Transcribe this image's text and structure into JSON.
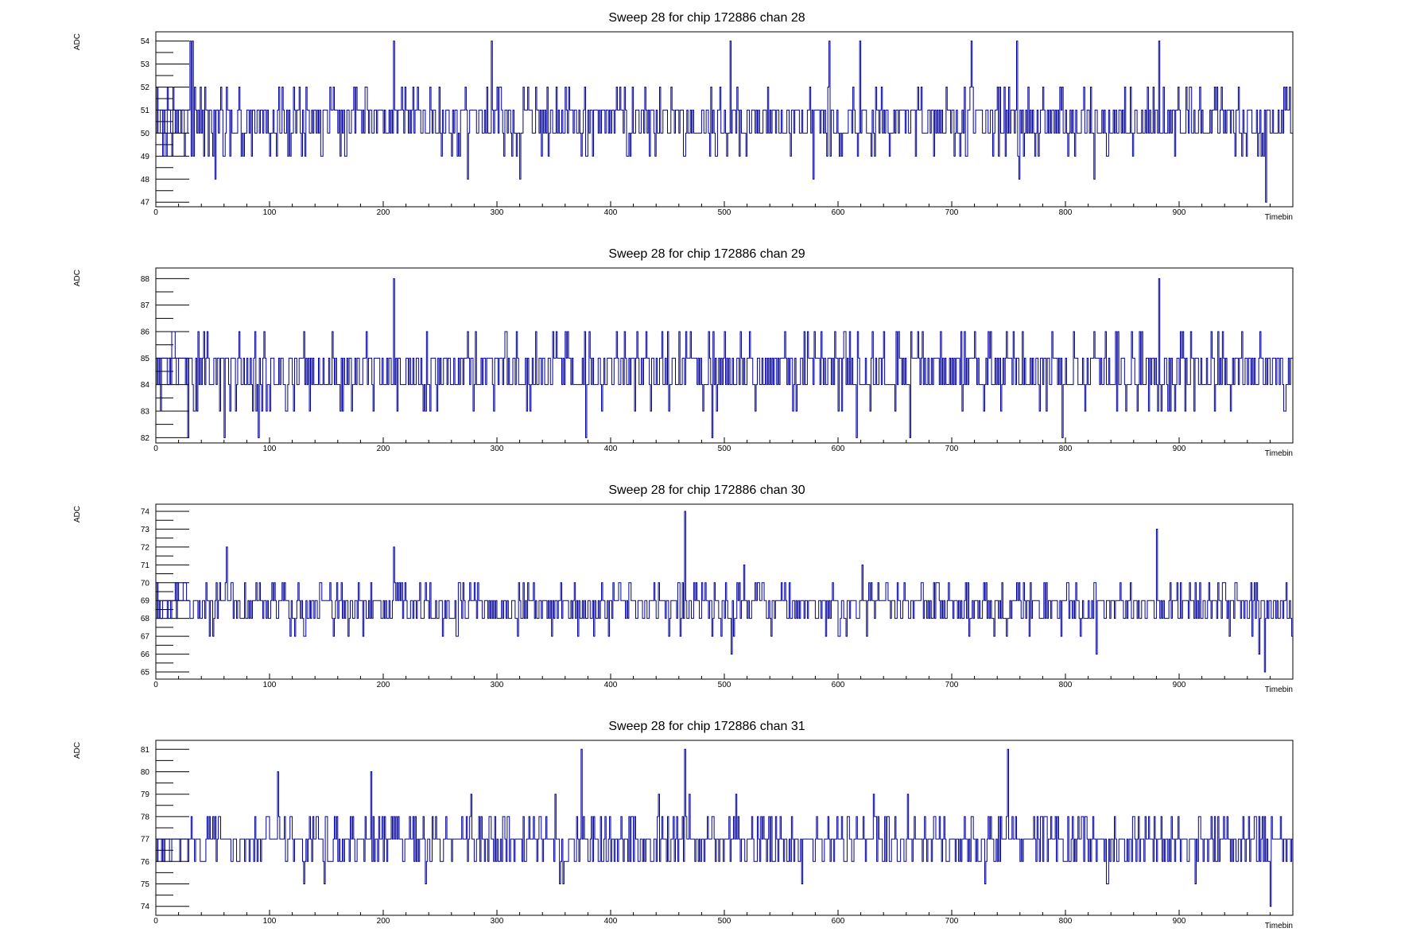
{
  "colors": {
    "series": "#000099",
    "frame": "#000000",
    "background": "#ffffff"
  },
  "chart_data": [
    {
      "type": "line",
      "title": "Sweep 28 for chip 172886 chan 28",
      "xlabel": "Timebin",
      "ylabel": "ADC",
      "xlim": [
        0,
        1000
      ],
      "ylim": [
        46.8,
        54.4
      ],
      "xticks": [
        0,
        100,
        200,
        300,
        400,
        500,
        600,
        700,
        800,
        900
      ],
      "yticks": [
        47,
        48,
        49,
        50,
        51,
        52,
        53,
        54
      ],
      "series": [
        {
          "baseline": 50.5,
          "spread": 1.1,
          "vmin": 47,
          "vmax": 54,
          "x": [
            0,
            30,
            32,
            52,
            209,
            274,
            295,
            320,
            505,
            578,
            592,
            619,
            717,
            757,
            759,
            825,
            882,
            976,
            1000
          ],
          "values": [
            50,
            54,
            54,
            48,
            54,
            48,
            54,
            48,
            54,
            48,
            54,
            54,
            54,
            54,
            48,
            48,
            54,
            47,
            50
          ]
        }
      ],
      "grid": false,
      "legend": "none"
    },
    {
      "type": "line",
      "title": "Sweep 28 for chip 172886 chan 29",
      "xlabel": "Timebin",
      "ylabel": "ADC",
      "xlim": [
        0,
        1000
      ],
      "ylim": [
        81.8,
        88.4
      ],
      "xticks": [
        0,
        100,
        200,
        300,
        400,
        500,
        600,
        700,
        800,
        900
      ],
      "yticks": [
        82,
        83,
        84,
        85,
        86,
        87,
        88
      ],
      "series": [
        {
          "baseline": 84.5,
          "spread": 1.0,
          "vmin": 82,
          "vmax": 88,
          "x": [
            0,
            28,
            60,
            90,
            209,
            378,
            489,
            616,
            663,
            797,
            882,
            1000
          ],
          "values": [
            84,
            82,
            82,
            82,
            88,
            82,
            82,
            82,
            82,
            82,
            88,
            83
          ]
        }
      ],
      "grid": false,
      "legend": "none"
    },
    {
      "type": "line",
      "title": "Sweep 28 for chip 172886 chan 30",
      "xlabel": "Timebin",
      "ylabel": "ADC",
      "xlim": [
        0,
        1000
      ],
      "ylim": [
        64.6,
        74.4
      ],
      "xticks": [
        0,
        100,
        200,
        300,
        400,
        500,
        600,
        700,
        800,
        900
      ],
      "yticks": [
        65,
        66,
        67,
        68,
        69,
        70,
        71,
        72,
        73,
        74
      ],
      "series": [
        {
          "baseline": 68.7,
          "spread": 1.05,
          "vmin": 65,
          "vmax": 74,
          "x": [
            0,
            62,
            209,
            465,
            506,
            827,
            880,
            970,
            975,
            1000
          ],
          "values": [
            68,
            72,
            72,
            74,
            66,
            66,
            73,
            66,
            65,
            69
          ]
        }
      ],
      "grid": false,
      "legend": "none"
    },
    {
      "type": "line",
      "title": "Sweep 28 for chip 172886 chan 31",
      "xlabel": "Timebin",
      "ylabel": "ADC",
      "xlim": [
        0,
        1000
      ],
      "ylim": [
        73.6,
        81.4
      ],
      "xticks": [
        0,
        100,
        200,
        300,
        400,
        500,
        600,
        700,
        800,
        900
      ],
      "yticks": [
        74,
        75,
        76,
        77,
        78,
        79,
        80,
        81
      ],
      "series": [
        {
          "baseline": 76.9,
          "spread": 1.0,
          "vmin": 74,
          "vmax": 81,
          "x": [
            0,
            107,
            189,
            374,
            465,
            749,
            980,
            1000
          ],
          "values": [
            77,
            80,
            80,
            81,
            81,
            81,
            74,
            76
          ]
        }
      ],
      "grid": false,
      "legend": "none"
    }
  ]
}
